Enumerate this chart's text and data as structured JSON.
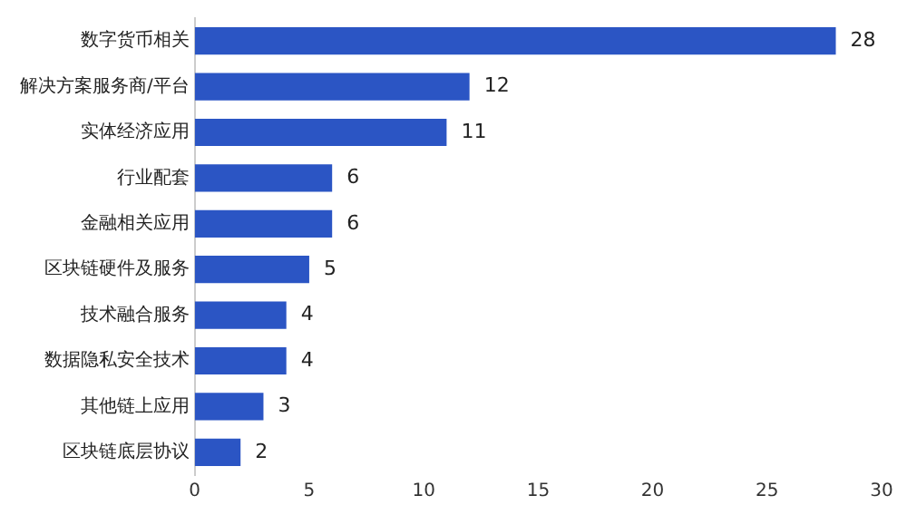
{
  "chart_data": {
    "type": "bar",
    "orientation": "horizontal",
    "categories": [
      "数字货币相关",
      "解决方案服务商/平台",
      "实体经济应用",
      "行业配套",
      "金融相关应用",
      "区块链硬件及服务",
      "技术融合服务",
      "数据隐私安全技术",
      "其他链上应用",
      "区块链底层协议"
    ],
    "values": [
      28,
      12,
      11,
      6,
      6,
      5,
      4,
      4,
      3,
      2
    ],
    "color": "#2b55c4",
    "xlim": [
      0,
      30
    ],
    "xticks": [
      0,
      5,
      10,
      15,
      20,
      25,
      30
    ],
    "grid": false,
    "data_labels": true
  }
}
